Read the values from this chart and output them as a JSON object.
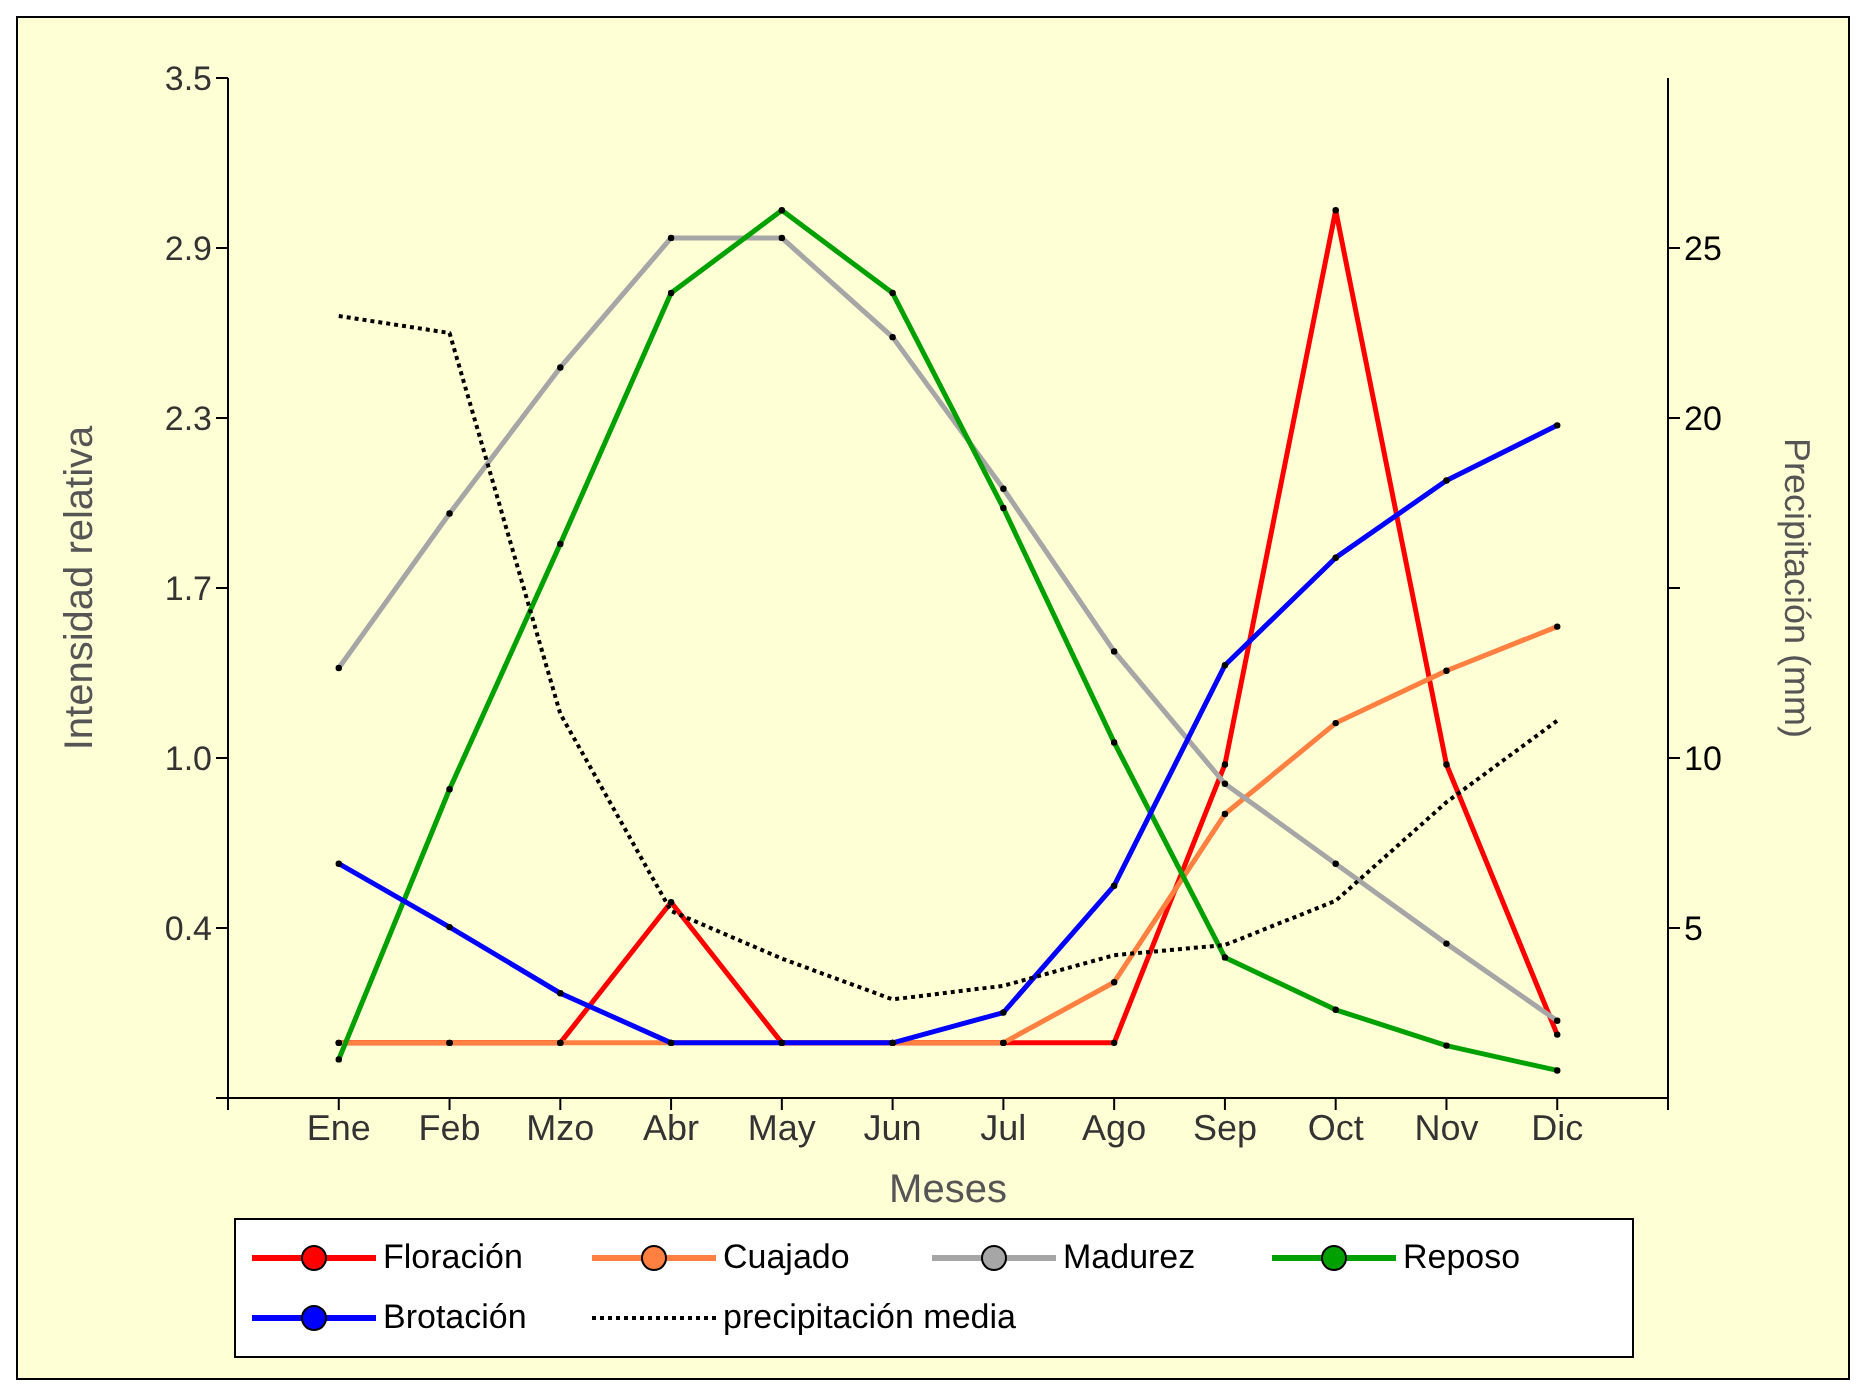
{
  "chart_data": {
    "type": "line",
    "xlabel": "Meses",
    "ylabel": "Intensidad relativa",
    "y2label": "Precipitación (mm)",
    "legend": "bottom",
    "categories": [
      null,
      "Ene",
      "Feb",
      "Mzo",
      "Abr",
      "May",
      "Jun",
      "Jul",
      "Ago",
      "Sep",
      "Oct",
      "Nov",
      "Dic",
      null
    ],
    "ylim": [
      -0.2,
      3.5
    ],
    "yticks": [
      {
        "value": -0.2,
        "label": null
      },
      {
        "value": 0.4167,
        "label": "0.4"
      },
      {
        "value": 1.0333,
        "label": "1.0"
      },
      {
        "value": 1.65,
        "label": "1.7"
      },
      {
        "value": 2.2667,
        "label": "2.3"
      },
      {
        "value": 2.8833,
        "label": "2.9"
      },
      3.5
    ],
    "y2lim": [
      0,
      30
    ],
    "y2ticks": [
      5,
      10,
      {
        "value": 15,
        "label": null
      },
      20,
      25
    ],
    "series": [
      {
        "name": "Floración",
        "color": "#ff0000",
        "marker": "circle",
        "line_style": "solid",
        "values": [
          null,
          0,
          0,
          0,
          0.51,
          0,
          0,
          0,
          0,
          1.01,
          3.02,
          1.01,
          0.03,
          null
        ]
      },
      {
        "name": "Cuajado",
        "color": "#ff8040",
        "marker": "circle",
        "line_style": "solid",
        "values": [
          null,
          0,
          0,
          0,
          0,
          0,
          0,
          0,
          0.22,
          0.83,
          1.16,
          1.35,
          1.51,
          null
        ]
      },
      {
        "name": "Madurez",
        "color": "#a6a6a6",
        "marker": "circle",
        "line_style": "solid",
        "values": [
          null,
          1.36,
          1.92,
          2.45,
          2.92,
          2.92,
          2.56,
          2.01,
          1.42,
          0.94,
          0.65,
          0.36,
          0.08,
          null
        ]
      },
      {
        "name": "Reposo",
        "color": "#00a000",
        "marker": "circle",
        "line_style": "solid",
        "values": [
          null,
          -0.06,
          0.92,
          1.81,
          2.72,
          3.02,
          2.72,
          1.94,
          1.09,
          0.31,
          0.12,
          -0.01,
          -0.1,
          null
        ]
      },
      {
        "name": "Brotación",
        "color": "#0000ff",
        "marker": "circle",
        "line_style": "solid",
        "values": [
          null,
          0.65,
          0.42,
          0.18,
          0,
          0,
          0,
          0.11,
          0.57,
          1.37,
          1.76,
          2.04,
          2.24,
          null
        ]
      },
      {
        "name": "precipitación media",
        "color": "#000000",
        "marker": "none",
        "line_style": "dotted",
        "axis": "y2",
        "values": [
          null,
          23,
          22.5,
          11.3,
          5.5,
          4.1,
          2.9,
          3.3,
          4.2,
          4.5,
          5.8,
          8.7,
          11.1,
          null
        ]
      }
    ]
  }
}
